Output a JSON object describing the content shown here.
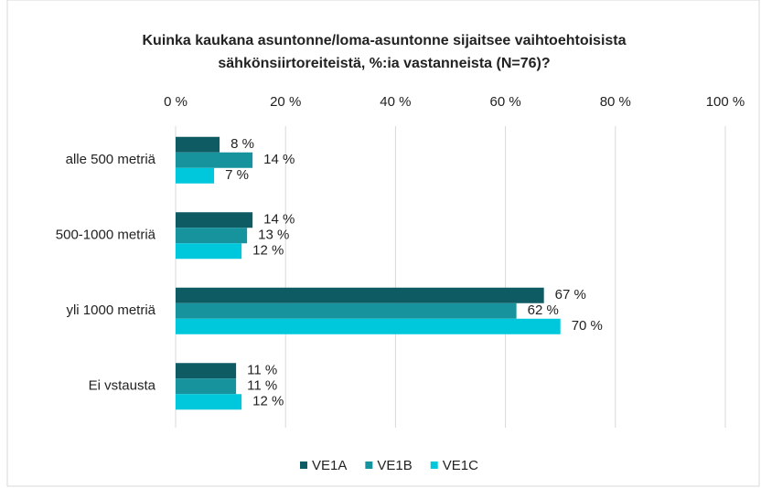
{
  "chart_data": {
    "type": "bar",
    "orientation": "horizontal",
    "title": [
      "Kuinka kaukana asuntonne/loma-asuntonne  sijaitsee vaihtoehtoisista",
      "sähkönsiirtoreiteistä, %:ia vastanneista (N=76)?"
    ],
    "categories": [
      "alle 500 metriä",
      "500-1000 metriä",
      "yli 1000 metriä",
      "Ei vstausta"
    ],
    "series": [
      {
        "name": "VE1A",
        "color": "#0f5b63",
        "values": [
          8,
          14,
          67,
          11
        ],
        "value_labels": [
          "8 %",
          "14 %",
          "67 %",
          "11 %"
        ]
      },
      {
        "name": "VE1B",
        "color": "#17939d",
        "values": [
          14,
          13,
          62,
          11
        ],
        "value_labels": [
          "14 %",
          "13 %",
          "62 %",
          "11 %"
        ]
      },
      {
        "name": "VE1C",
        "color": "#00c8dc",
        "values": [
          7,
          12,
          70,
          12
        ],
        "value_labels": [
          "7 %",
          "12 %",
          "70 %",
          "12 %"
        ]
      }
    ],
    "xlim": [
      0,
      100
    ],
    "xticks": [
      {
        "value": 0,
        "label": "0 %"
      },
      {
        "value": 20,
        "label": "20 %"
      },
      {
        "value": 40,
        "label": "40 %"
      },
      {
        "value": 60,
        "label": "60 %"
      },
      {
        "value": 80,
        "label": "80 %"
      },
      {
        "value": 100,
        "label": "100 %"
      }
    ],
    "grid": true,
    "legend": "bottom"
  }
}
